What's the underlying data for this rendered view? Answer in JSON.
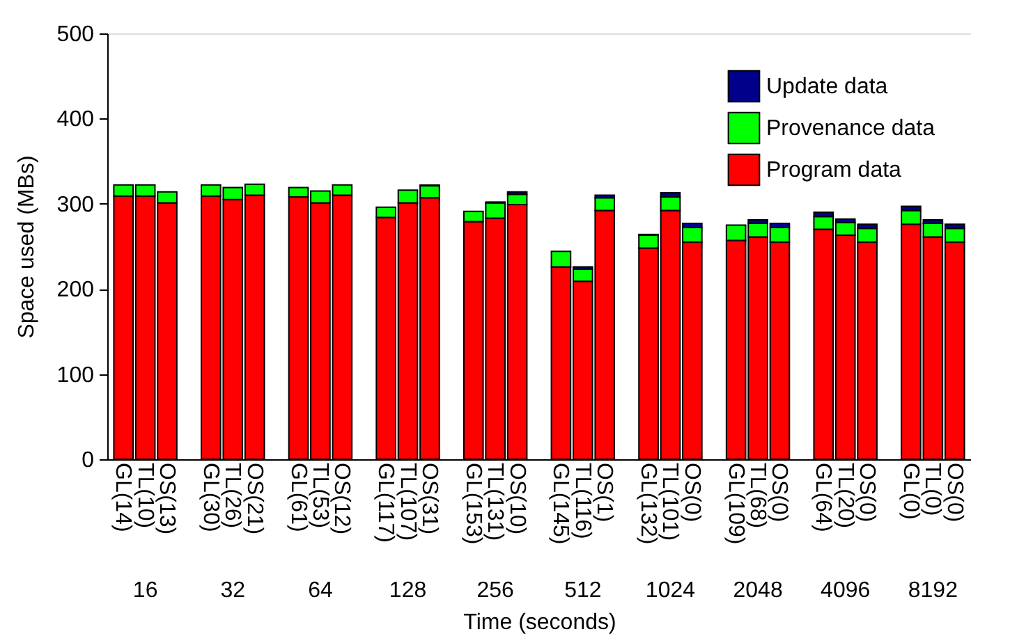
{
  "chart_data": {
    "type": "bar",
    "stacked": true,
    "xlabel": "Time (seconds)",
    "ylabel": "Space used (MBs)",
    "categories": [
      "GL(14)",
      "TL(10)",
      "OS(13)",
      "GL(30)",
      "TL(26)",
      "OS(21)",
      "GL(61)",
      "TL(53)",
      "OS(12)",
      "GL(117)",
      "TL(107)",
      "OS(31)",
      "GL(153)",
      "TL(131)",
      "OS(10)",
      "GL(145)",
      "TL(116)",
      "OS(1)",
      "GL(132)",
      "TL(101)",
      "OS(0)",
      "GL(109)",
      "TL(68)",
      "OS(0)",
      "GL(64)",
      "TL(20)",
      "OS(0)",
      "GL(0)",
      "TL(0)",
      "OS(0)"
    ],
    "series": [
      {
        "name": "Program data",
        "color": "#ff0000",
        "values": [
          309,
          309,
          301,
          309,
          305,
          310,
          308,
          301,
          310,
          284,
          301,
          307,
          279,
          283,
          299,
          226,
          209,
          292,
          248,
          292,
          255,
          257,
          261,
          255,
          270,
          263,
          255,
          276,
          261,
          255
        ]
      },
      {
        "name": "Provenance data",
        "color": "#00ff00",
        "values": [
          13,
          13,
          13,
          13,
          14,
          13,
          11,
          14,
          12,
          12,
          15,
          14,
          12,
          18,
          12,
          18,
          14,
          15,
          15,
          16,
          17,
          18,
          16,
          17,
          15,
          15,
          16,
          16,
          16,
          16
        ]
      },
      {
        "name": "Update data",
        "color": "#00008b",
        "values": [
          0,
          0,
          0,
          0,
          0,
          0,
          0,
          0,
          0,
          0,
          0,
          1,
          0,
          1,
          3,
          0,
          3,
          3,
          1,
          5,
          5,
          0,
          4,
          5,
          5,
          4,
          5,
          5,
          4,
          5
        ]
      }
    ],
    "annotations": [
      "16",
      "32",
      "64",
      "128",
      "256",
      "512",
      "1024",
      "2048",
      "4096",
      "8192"
    ],
    "ylim": [
      0,
      500
    ],
    "yticks": [
      0,
      100,
      200,
      300,
      400,
      500
    ],
    "grid": false,
    "legend": "top right"
  }
}
